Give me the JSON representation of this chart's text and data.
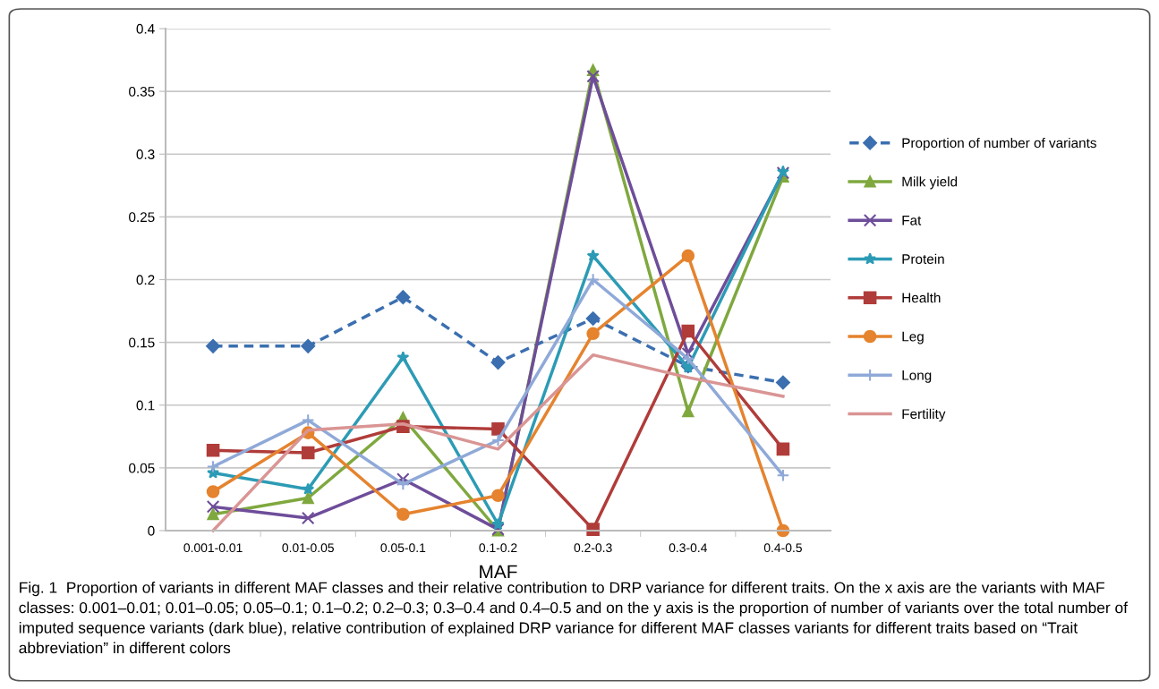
{
  "chart_data": {
    "type": "line",
    "xlabel": "MAF",
    "categories": [
      "0.001-0.01",
      "0.01-0.05",
      "0.05-0.1",
      "0.1-0.2",
      "0.2-0.3",
      "0.3-0.4",
      "0.4-0.5"
    ],
    "ylim": [
      0,
      0.4
    ],
    "yticks": [
      {
        "value": 0,
        "label": "0"
      },
      0.05,
      0.1,
      0.15,
      0.2,
      0.25,
      0.3,
      0.35,
      0.4
    ],
    "grid": "y",
    "legend": "right",
    "series": [
      {
        "name": "Proportion of number of variants",
        "color": "#3b6fb0",
        "marker": "diamond",
        "line_style": "dashed",
        "values": [
          0.147,
          0.147,
          0.186,
          0.134,
          0.169,
          0.131,
          0.118
        ]
      },
      {
        "name": "Milk yield",
        "color": "#7fa83e",
        "marker": "triangle",
        "values": [
          0.013,
          0.026,
          0.09,
          0,
          0.367,
          0.095,
          0.282
        ]
      },
      {
        "name": "Fat",
        "color": "#6e4d9a",
        "marker": "cross",
        "values": [
          0.019,
          0.01,
          0.041,
          0.001,
          0.362,
          0.141,
          0.285
        ]
      },
      {
        "name": "Protein",
        "color": "#2c9bb5",
        "marker": "star",
        "values": [
          0.046,
          0.033,
          0.138,
          0.005,
          0.219,
          0.13,
          0.286
        ]
      },
      {
        "name": "Health",
        "color": "#b03c3a",
        "marker": "square",
        "values": [
          0.064,
          0.062,
          0.083,
          0.081,
          0.001,
          0.159,
          0.065
        ]
      },
      {
        "name": "Leg",
        "color": "#e5832e",
        "marker": "circle",
        "values": [
          0.031,
          0.078,
          0.013,
          0.028,
          0.157,
          0.219,
          0
        ]
      },
      {
        "name": "Long",
        "color": "#8fa9d8",
        "marker": "plus",
        "values": [
          0.051,
          0.088,
          0.037,
          0.072,
          0.2,
          0.137,
          0.044
        ]
      },
      {
        "name": "Fertility",
        "color": "#d99594",
        "marker": "none",
        "values": [
          0,
          0.08,
          0.085,
          0.065,
          0.14,
          0.122,
          0.107
        ]
      }
    ],
    "annotations": [
      "Fig. 1  Proportion of variants in different MAF classes and their relative contribution to DRP variance for different traits. On the x axis are the variants with MAF classes: 0.001–0.01; 0.01–0.05; 0.05–0.1; 0.1–0.2; 0.2–0.3; 0.3–0.4 and 0.4–0.5 and on the y axis is the proportion of number of variants over the total number of imputed sequence variants (dark blue), relative contribution of explained DRP variance for different MAF classes variants for different traits based on “Trait abbreviation” in different colors"
    ]
  }
}
